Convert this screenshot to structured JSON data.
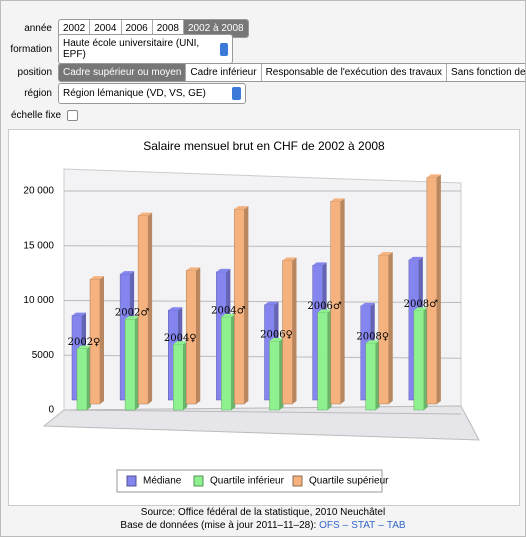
{
  "controls": [
    {
      "label": "année",
      "kind": "buttons",
      "options": [
        "2002",
        "2004",
        "2006",
        "2008",
        "2002 à 2008"
      ],
      "selected": "2002 à 2008"
    },
    {
      "label": "formation",
      "kind": "menu",
      "options": [
        "Haute école universitaire (UNI, EPF)"
      ],
      "selected": "Haute école universitaire (UNI, EPF)"
    },
    {
      "label": "position",
      "kind": "buttons",
      "options": [
        "Cadre supérieur ou moyen",
        "Cadre inférieur",
        "Responsable de l'exécution des travaux",
        "Sans fonction de cadre"
      ],
      "selected": "Cadre supérieur ou moyen"
    },
    {
      "label": "région",
      "kind": "menu",
      "options": [
        "Région lémanique (VD, VS, GE)"
      ],
      "selected": "Région lémanique (VD, VS, GE)"
    },
    {
      "label": "échelle fixe",
      "kind": "checkbox",
      "checked": false
    }
  ],
  "chart_data": {
    "type": "bar3d",
    "title": "Salaire mensuel brut en CHF de 2002 à 2008",
    "categories": [
      "2002♀",
      "2002♂",
      "2004♀",
      "2004♂",
      "2006♀",
      "2006♂",
      "2008♀",
      "2008♂"
    ],
    "series": [
      {
        "name": "Médiane",
        "color": "#8585f0",
        "values": [
          7700,
          11500,
          8200,
          11700,
          8700,
          12300,
          8600,
          12800
        ]
      },
      {
        "name": "Quartile inférieur",
        "color": "#8ff08f",
        "values": [
          5600,
          8300,
          6000,
          8500,
          6300,
          8900,
          6100,
          9100
        ]
      },
      {
        "name": "Quartile supérieur",
        "color": "#f5b27e",
        "values": [
          11400,
          17200,
          12200,
          17800,
          13100,
          18500,
          13600,
          20700
        ]
      }
    ],
    "ylim": [
      0,
      20000
    ],
    "yticks": [
      0,
      5000,
      {
        "value": 10000,
        "label": "10 000"
      },
      {
        "value": 15000,
        "label": "15 000"
      },
      {
        "value": 20000,
        "label": "20 000"
      }
    ],
    "grid": true
  },
  "footer": {
    "source": "Source: Office fédéral de la statistique, 2010 Neuchâtel",
    "database": "Base de données (mise à jour 2011–11–28): ",
    "links": [
      "OFS",
      "–",
      "STAT",
      "–",
      "TAB"
    ]
  }
}
